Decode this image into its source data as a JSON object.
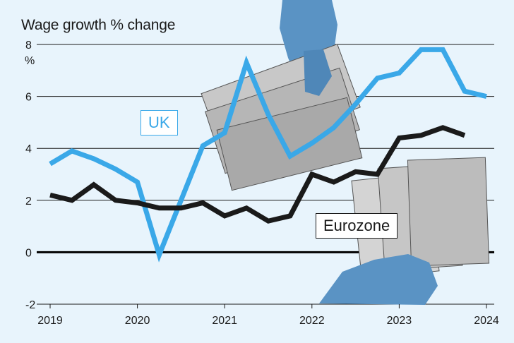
{
  "chart_data": {
    "type": "line",
    "title": "Wage growth % change",
    "ylabel": "%",
    "ylim": [
      -2,
      8
    ],
    "yticks": [
      8,
      6,
      4,
      2,
      0,
      -2
    ],
    "xticks": [
      "2019",
      "2020",
      "2021",
      "2022",
      "2023",
      "2024"
    ],
    "grid": true,
    "series": [
      {
        "name": "UK",
        "color": "#3aa8e8",
        "x": [
          2019.0,
          2019.25,
          2019.5,
          2019.75,
          2020.0,
          2020.25,
          2020.5,
          2020.75,
          2021.0,
          2021.25,
          2021.5,
          2021.75,
          2022.0,
          2022.25,
          2022.5,
          2022.75,
          2023.0,
          2023.25,
          2023.5,
          2023.75,
          2024.0
        ],
        "values": [
          3.4,
          3.9,
          3.6,
          3.2,
          2.7,
          -0.1,
          2.0,
          4.1,
          4.6,
          7.3,
          5.3,
          3.7,
          4.2,
          4.8,
          5.7,
          6.7,
          6.9,
          7.8,
          7.8,
          6.2,
          6.0
        ]
      },
      {
        "name": "Eurozone",
        "color": "#1a1a1a",
        "x": [
          2019.0,
          2019.25,
          2019.5,
          2019.75,
          2020.0,
          2020.25,
          2020.5,
          2020.75,
          2021.0,
          2021.25,
          2021.5,
          2021.75,
          2022.0,
          2022.25,
          2022.5,
          2022.75,
          2023.0,
          2023.25,
          2023.5,
          2023.75
        ],
        "values": [
          2.2,
          2.0,
          2.6,
          2.0,
          1.9,
          1.7,
          1.7,
          1.9,
          1.4,
          1.7,
          1.2,
          1.4,
          3.0,
          2.7,
          3.1,
          3.0,
          4.4,
          4.5,
          4.8,
          4.5
        ]
      }
    ]
  }
}
